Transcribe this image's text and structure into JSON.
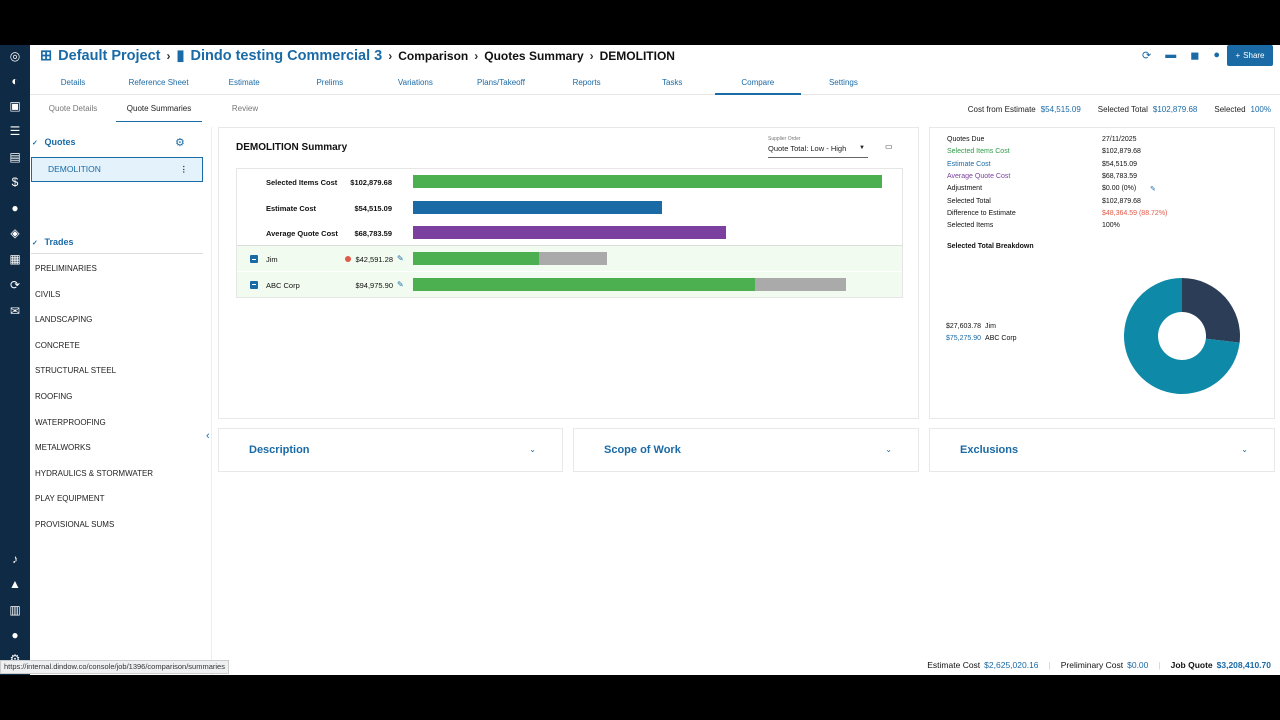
{
  "breadcrumb": {
    "project": "Default Project",
    "job": "Dindo testing Commercial 3",
    "section": "Comparison",
    "page": "Quotes Summary",
    "trade": "DEMOLITION"
  },
  "header": {
    "share_label": "Share"
  },
  "tabs": [
    "Details",
    "Reference Sheet",
    "Estimate",
    "Prelims",
    "Variations",
    "Plans/Takeoff",
    "Reports",
    "Tasks",
    "Compare",
    "Settings"
  ],
  "active_tab": "Compare",
  "subtabs": [
    "Quote Details",
    "Quote Summaries",
    "Review"
  ],
  "active_subtab": "Quote Summaries",
  "cost_summary": {
    "cost_from_estimate_label": "Cost from Estimate",
    "cost_from_estimate": "$54,515.09",
    "selected_total_label": "Selected Total",
    "selected_total": "$102,879.68",
    "selected_label": "Selected",
    "selected": "100%"
  },
  "sidebar": {
    "quotes_label": "Quotes",
    "selected_quote": "DEMOLITION",
    "trades_label": "Trades",
    "trades": [
      "PRELIMINARIES",
      "CIVILS",
      "LANDSCAPING",
      "CONCRETE",
      "STRUCTURAL STEEL",
      "ROOFING",
      "WATERPROOFING",
      "METALWORKS",
      "HYDRAULICS & STORMWATER",
      "PLAY EQUIPMENT",
      "PROVISIONAL SUMS"
    ]
  },
  "summary": {
    "title": "DEMOLITION Summary",
    "order_label": "Supplier Order",
    "order_value": "Quote Total: Low - High",
    "rows": [
      {
        "label": "Selected Items Cost",
        "value": "$102,879.68",
        "fraction": 1.0,
        "color": "#4caf50"
      },
      {
        "label": "Estimate Cost",
        "value": "$54,515.09",
        "fraction": 0.53,
        "color": "#1a6aa6"
      },
      {
        "label": "Average Quote Cost",
        "value": "$68,783.59",
        "fraction": 0.668,
        "color": "#7b3fa0"
      }
    ],
    "quotes": [
      {
        "label": "Jim",
        "value": "$42,591.28",
        "fraction_selected": 0.268,
        "fraction_total": 0.413,
        "flag": true
      },
      {
        "label": "ABC Corp",
        "value": "$94,975.90",
        "fraction_selected": 0.73,
        "fraction_total": 0.923,
        "flag": false
      }
    ]
  },
  "info": {
    "rows": [
      {
        "label": "Quotes Due",
        "value": "27/11/2025",
        "cls": "",
        "vcls": ""
      },
      {
        "label": "Selected Items Cost",
        "value": "$102,879.68",
        "cls": "lg",
        "vcls": ""
      },
      {
        "label": "Estimate Cost",
        "value": "$54,515.09",
        "cls": "lb",
        "vcls": ""
      },
      {
        "label": "Average Quote Cost",
        "value": "$68,783.59",
        "cls": "lp",
        "vcls": ""
      },
      {
        "label": "Adjustment",
        "value": "$0.00 (0%)",
        "cls": "",
        "vcls": ""
      },
      {
        "label": "Selected Total",
        "value": "$102,879.68",
        "cls": "",
        "vcls": ""
      },
      {
        "label": "Difference to Estimate",
        "value": "$48,364.59 (88.72%)",
        "cls": "",
        "vcls": "lr"
      },
      {
        "label": "Selected Items",
        "value": "100%",
        "cls": "",
        "vcls": ""
      }
    ],
    "breakdown_title": "Selected Total Breakdown",
    "breakdown": [
      {
        "amount": "$27,603.78",
        "name": "Jim",
        "value": 27603.78,
        "color": "#2c3e57"
      },
      {
        "amount": "$75,275.90",
        "name": "ABC Corp",
        "value": 75275.9,
        "color": "#0e8aa8"
      }
    ]
  },
  "accordions": [
    "Description",
    "Scope of Work",
    "Exclusions"
  ],
  "url": "https://internal.dindow.co/console/job/1396/comparison/summaries",
  "footer": {
    "estimate_label": "Estimate Cost",
    "estimate": "$2,625,020.16",
    "prelim_label": "Preliminary Cost",
    "prelim": "$0.00",
    "job_label": "Job Quote",
    "job": "$3,208,410.70"
  }
}
